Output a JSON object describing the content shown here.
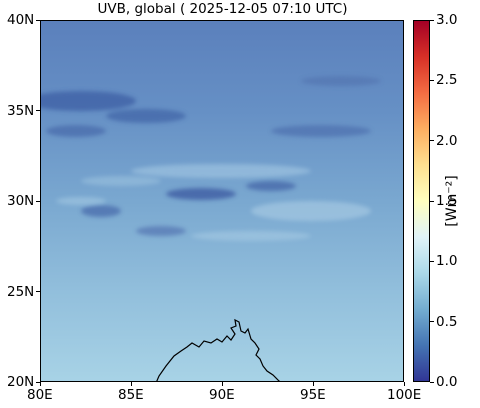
{
  "title": "UVB, global ( 2025-12-05 07:10 UTC)",
  "map": {
    "lon_range": [
      80,
      100
    ],
    "lat_range": [
      20,
      40
    ],
    "x_ticks": [
      {
        "value": 80,
        "label": "80E"
      },
      {
        "value": 85,
        "label": "85E"
      },
      {
        "value": 90,
        "label": "90E"
      },
      {
        "value": 95,
        "label": "95E"
      },
      {
        "value": 100,
        "label": "100E"
      }
    ],
    "y_ticks": [
      {
        "value": 40,
        "label": "40N"
      },
      {
        "value": 35,
        "label": "35N"
      },
      {
        "value": 30,
        "label": "30N"
      },
      {
        "value": 25,
        "label": "25N"
      },
      {
        "value": 20,
        "label": "20N"
      }
    ],
    "coastline_color": "#000000"
  },
  "colorbar": {
    "label": "[Wm⁻²]",
    "range": [
      0.0,
      3.0
    ],
    "ticks": [
      {
        "value": 3.0,
        "label": "3.0"
      },
      {
        "value": 2.5,
        "label": "2.5"
      },
      {
        "value": 2.0,
        "label": "2.0"
      },
      {
        "value": 1.5,
        "label": "1.5"
      },
      {
        "value": 1.0,
        "label": "1.0"
      },
      {
        "value": 0.5,
        "label": "0.5"
      },
      {
        "value": 0.0,
        "label": "0.0"
      }
    ],
    "colormap": "RdYlBu_r",
    "colors": [
      "#313695",
      "#4575b4",
      "#74add1",
      "#abd9e9",
      "#e0f3f8",
      "#ffffbf",
      "#fee090",
      "#fdae61",
      "#f46d43",
      "#d73027",
      "#a50026"
    ]
  }
}
